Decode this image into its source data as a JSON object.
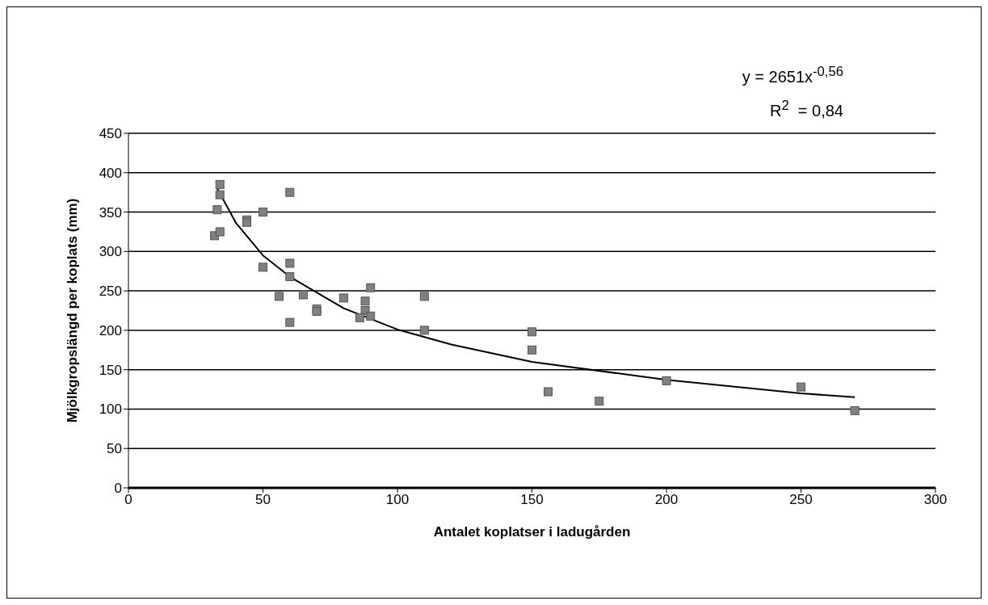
{
  "chart_data": {
    "type": "scatter",
    "xlabel": "Antalet koplatser i ladugården",
    "ylabel": "Mjölkgropslängd per koplats (mm)",
    "annotations": [
      "y = 2651x$^{-0,56}$",
      "R$^{2}$  = 0,84"
    ],
    "xlim": [
      0,
      300
    ],
    "xticks": [
      0,
      50,
      100,
      150,
      200,
      250,
      300
    ],
    "ylim": [
      0,
      450
    ],
    "yticks": [
      0,
      50,
      100,
      150,
      200,
      250,
      300,
      350,
      400,
      450
    ],
    "grid": "y",
    "series": [
      {
        "marker": "square",
        "color": "#808080",
        "x": [
          32,
          34,
          34,
          33,
          34,
          44,
          44,
          50,
          50,
          60,
          60,
          60,
          56,
          65,
          60,
          70,
          70,
          80,
          88,
          90,
          88,
          86,
          90,
          110,
          110,
          150,
          150,
          156,
          175,
          200,
          250,
          270
        ],
        "values": [
          320,
          385,
          372,
          353,
          325,
          340,
          337,
          350,
          280,
          375,
          285,
          268,
          243,
          245,
          210,
          227,
          224,
          241,
          237,
          254,
          225,
          216,
          218,
          243,
          200,
          198,
          175,
          122,
          110,
          136,
          128,
          98
        ]
      },
      {
        "type": "line",
        "marker": "none",
        "color": "#000000",
        "x": [
          33,
          40,
          50,
          60,
          80,
          100,
          120,
          150,
          200,
          250,
          270
        ],
        "values": [
          380,
          336,
          295,
          268,
          228,
          201,
          182,
          160,
          137,
          120,
          115
        ]
      }
    ]
  }
}
